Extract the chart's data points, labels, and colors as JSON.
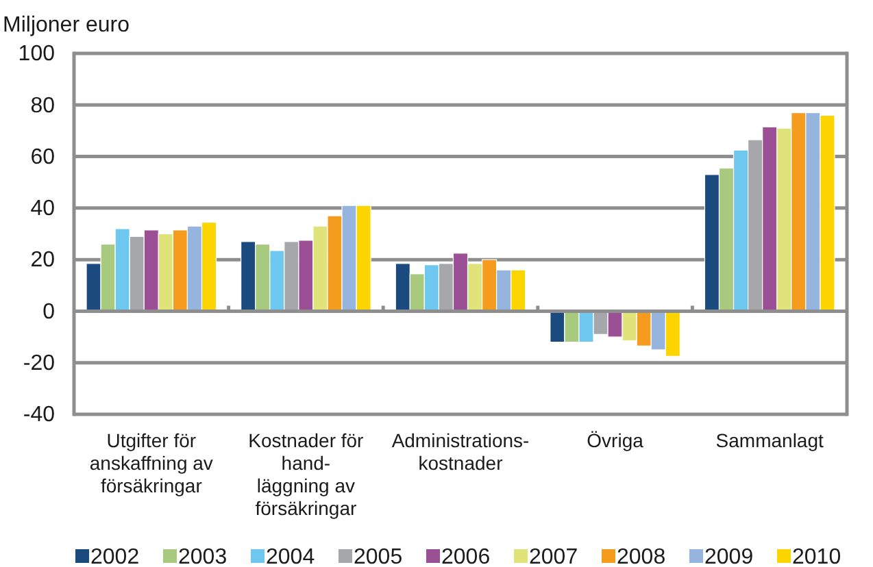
{
  "chart_data": {
    "type": "bar",
    "ylabel": "Miljoner euro",
    "categories": [
      "Utgifter för\nanskaffning av\nförsäkringar",
      "Kostnader för\nhand-\nläggning av\nförsäkringar",
      "Administrations-\nkostnader",
      "Övriga",
      "Sammanlagt"
    ],
    "series": [
      {
        "name": "2002",
        "color": "#1b4a7f",
        "values": [
          18.5,
          27,
          18.5,
          -12,
          53
        ]
      },
      {
        "name": "2003",
        "color": "#a8ca7f",
        "values": [
          26,
          26,
          14.5,
          -12,
          55.5
        ]
      },
      {
        "name": "2004",
        "color": "#6ec7ef",
        "values": [
          32,
          23.5,
          18,
          -12,
          62.5
        ]
      },
      {
        "name": "2005",
        "color": "#a6a7aa",
        "values": [
          29,
          27,
          18.5,
          -9,
          66.5
        ]
      },
      {
        "name": "2006",
        "color": "#9b5096",
        "values": [
          31.5,
          27.5,
          22.5,
          -10,
          71.5
        ]
      },
      {
        "name": "2007",
        "color": "#dfe37a",
        "values": [
          30,
          33,
          18.5,
          -11.5,
          71
        ]
      },
      {
        "name": "2008",
        "color": "#f59c1f",
        "values": [
          31.5,
          37,
          20,
          -13.5,
          77
        ]
      },
      {
        "name": "2009",
        "color": "#95b4de",
        "values": [
          33,
          41,
          16,
          -15,
          77
        ]
      },
      {
        "name": "2010",
        "color": "#fcd400",
        "values": [
          34.5,
          41,
          16,
          -17.5,
          76
        ]
      }
    ],
    "ylim": [
      -40,
      100
    ],
    "yticks": [
      -40,
      -20,
      0,
      20,
      40,
      60,
      80,
      100
    ],
    "grid": "y",
    "legend": "bottom"
  }
}
